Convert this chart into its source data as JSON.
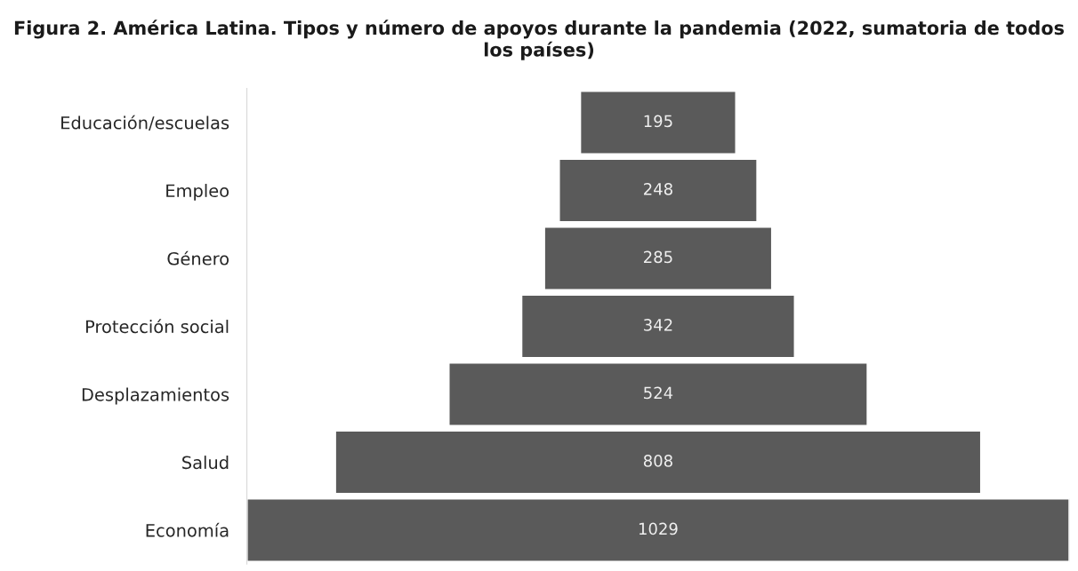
{
  "chart_data": {
    "type": "other",
    "title": "Figura 2. América Latina. Tipos y número de apoyos durante la pandemia (2022, sumatoria de todos los países)",
    "categories": [
      "Educación/escuelas",
      "Empleo",
      "Género",
      "Protección social",
      "Desplazamientos",
      "Salud",
      "Economía"
    ],
    "values": [
      195,
      248,
      285,
      342,
      524,
      808,
      1029
    ],
    "color": "#5a5a5a",
    "data_labels": true
  }
}
